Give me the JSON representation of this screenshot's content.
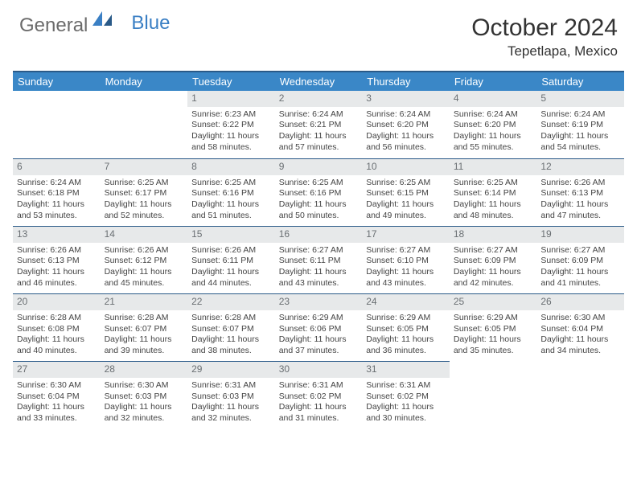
{
  "logo": {
    "text1": "General",
    "text2": "Blue"
  },
  "header": {
    "month": "October 2024",
    "location": "Tepetlapa, Mexico"
  },
  "colors": {
    "header_bg": "#3a87c7",
    "header_border": "#2a5a88",
    "daynum_bg": "#e7e9ea",
    "daynum_color": "#6a6f73",
    "logo_blue": "#3a7fc4"
  },
  "weekdays": [
    "Sunday",
    "Monday",
    "Tuesday",
    "Wednesday",
    "Thursday",
    "Friday",
    "Saturday"
  ],
  "weeks": [
    [
      null,
      null,
      {
        "n": "1",
        "sunrise": "6:23 AM",
        "sunset": "6:22 PM",
        "daylight": "11 hours and 58 minutes."
      },
      {
        "n": "2",
        "sunrise": "6:24 AM",
        "sunset": "6:21 PM",
        "daylight": "11 hours and 57 minutes."
      },
      {
        "n": "3",
        "sunrise": "6:24 AM",
        "sunset": "6:20 PM",
        "daylight": "11 hours and 56 minutes."
      },
      {
        "n": "4",
        "sunrise": "6:24 AM",
        "sunset": "6:20 PM",
        "daylight": "11 hours and 55 minutes."
      },
      {
        "n": "5",
        "sunrise": "6:24 AM",
        "sunset": "6:19 PM",
        "daylight": "11 hours and 54 minutes."
      }
    ],
    [
      {
        "n": "6",
        "sunrise": "6:24 AM",
        "sunset": "6:18 PM",
        "daylight": "11 hours and 53 minutes."
      },
      {
        "n": "7",
        "sunrise": "6:25 AM",
        "sunset": "6:17 PM",
        "daylight": "11 hours and 52 minutes."
      },
      {
        "n": "8",
        "sunrise": "6:25 AM",
        "sunset": "6:16 PM",
        "daylight": "11 hours and 51 minutes."
      },
      {
        "n": "9",
        "sunrise": "6:25 AM",
        "sunset": "6:16 PM",
        "daylight": "11 hours and 50 minutes."
      },
      {
        "n": "10",
        "sunrise": "6:25 AM",
        "sunset": "6:15 PM",
        "daylight": "11 hours and 49 minutes."
      },
      {
        "n": "11",
        "sunrise": "6:25 AM",
        "sunset": "6:14 PM",
        "daylight": "11 hours and 48 minutes."
      },
      {
        "n": "12",
        "sunrise": "6:26 AM",
        "sunset": "6:13 PM",
        "daylight": "11 hours and 47 minutes."
      }
    ],
    [
      {
        "n": "13",
        "sunrise": "6:26 AM",
        "sunset": "6:13 PM",
        "daylight": "11 hours and 46 minutes."
      },
      {
        "n": "14",
        "sunrise": "6:26 AM",
        "sunset": "6:12 PM",
        "daylight": "11 hours and 45 minutes."
      },
      {
        "n": "15",
        "sunrise": "6:26 AM",
        "sunset": "6:11 PM",
        "daylight": "11 hours and 44 minutes."
      },
      {
        "n": "16",
        "sunrise": "6:27 AM",
        "sunset": "6:11 PM",
        "daylight": "11 hours and 43 minutes."
      },
      {
        "n": "17",
        "sunrise": "6:27 AM",
        "sunset": "6:10 PM",
        "daylight": "11 hours and 43 minutes."
      },
      {
        "n": "18",
        "sunrise": "6:27 AM",
        "sunset": "6:09 PM",
        "daylight": "11 hours and 42 minutes."
      },
      {
        "n": "19",
        "sunrise": "6:27 AM",
        "sunset": "6:09 PM",
        "daylight": "11 hours and 41 minutes."
      }
    ],
    [
      {
        "n": "20",
        "sunrise": "6:28 AM",
        "sunset": "6:08 PM",
        "daylight": "11 hours and 40 minutes."
      },
      {
        "n": "21",
        "sunrise": "6:28 AM",
        "sunset": "6:07 PM",
        "daylight": "11 hours and 39 minutes."
      },
      {
        "n": "22",
        "sunrise": "6:28 AM",
        "sunset": "6:07 PM",
        "daylight": "11 hours and 38 minutes."
      },
      {
        "n": "23",
        "sunrise": "6:29 AM",
        "sunset": "6:06 PM",
        "daylight": "11 hours and 37 minutes."
      },
      {
        "n": "24",
        "sunrise": "6:29 AM",
        "sunset": "6:05 PM",
        "daylight": "11 hours and 36 minutes."
      },
      {
        "n": "25",
        "sunrise": "6:29 AM",
        "sunset": "6:05 PM",
        "daylight": "11 hours and 35 minutes."
      },
      {
        "n": "26",
        "sunrise": "6:30 AM",
        "sunset": "6:04 PM",
        "daylight": "11 hours and 34 minutes."
      }
    ],
    [
      {
        "n": "27",
        "sunrise": "6:30 AM",
        "sunset": "6:04 PM",
        "daylight": "11 hours and 33 minutes."
      },
      {
        "n": "28",
        "sunrise": "6:30 AM",
        "sunset": "6:03 PM",
        "daylight": "11 hours and 32 minutes."
      },
      {
        "n": "29",
        "sunrise": "6:31 AM",
        "sunset": "6:03 PM",
        "daylight": "11 hours and 32 minutes."
      },
      {
        "n": "30",
        "sunrise": "6:31 AM",
        "sunset": "6:02 PM",
        "daylight": "11 hours and 31 minutes."
      },
      {
        "n": "31",
        "sunrise": "6:31 AM",
        "sunset": "6:02 PM",
        "daylight": "11 hours and 30 minutes."
      },
      null,
      null
    ]
  ],
  "labels": {
    "sunrise": "Sunrise:",
    "sunset": "Sunset:",
    "daylight": "Daylight:"
  }
}
